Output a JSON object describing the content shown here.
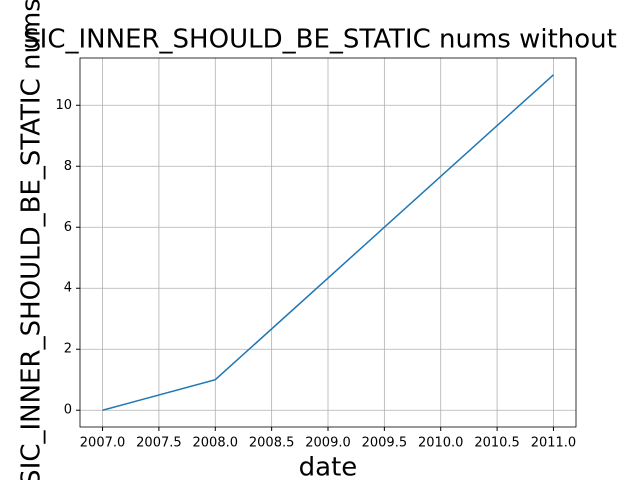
{
  "chart_data": {
    "type": "line",
    "title": "SIC_INNER_SHOULD_BE_STATIC nums without",
    "xlabel": "date",
    "ylabel": "SIC_INNER_SHOULD_BE_STATIC nums",
    "x": [
      2007,
      2008,
      2011
    ],
    "series": [
      {
        "color": "#1f77b4",
        "values": [
          0,
          1,
          11
        ]
      }
    ],
    "xlim": [
      2006.8,
      2011.2
    ],
    "ylim": [
      -0.55,
      11.55
    ],
    "xticks": [
      {
        "value": 2007,
        "label": "2007.0"
      },
      {
        "value": 2007.5,
        "label": "2007.5"
      },
      {
        "value": 2008,
        "label": "2008.0"
      },
      {
        "value": 2008.5,
        "label": "2008.5"
      },
      {
        "value": 2009,
        "label": "2009.0"
      },
      {
        "value": 2009.5,
        "label": "2009.5"
      },
      {
        "value": 2010,
        "label": "2010.0"
      },
      {
        "value": 2010.5,
        "label": "2010.5"
      },
      {
        "value": 2011,
        "label": "2011.0"
      }
    ],
    "yticks": [
      0,
      2,
      4,
      6,
      8,
      10
    ],
    "grid": true
  }
}
